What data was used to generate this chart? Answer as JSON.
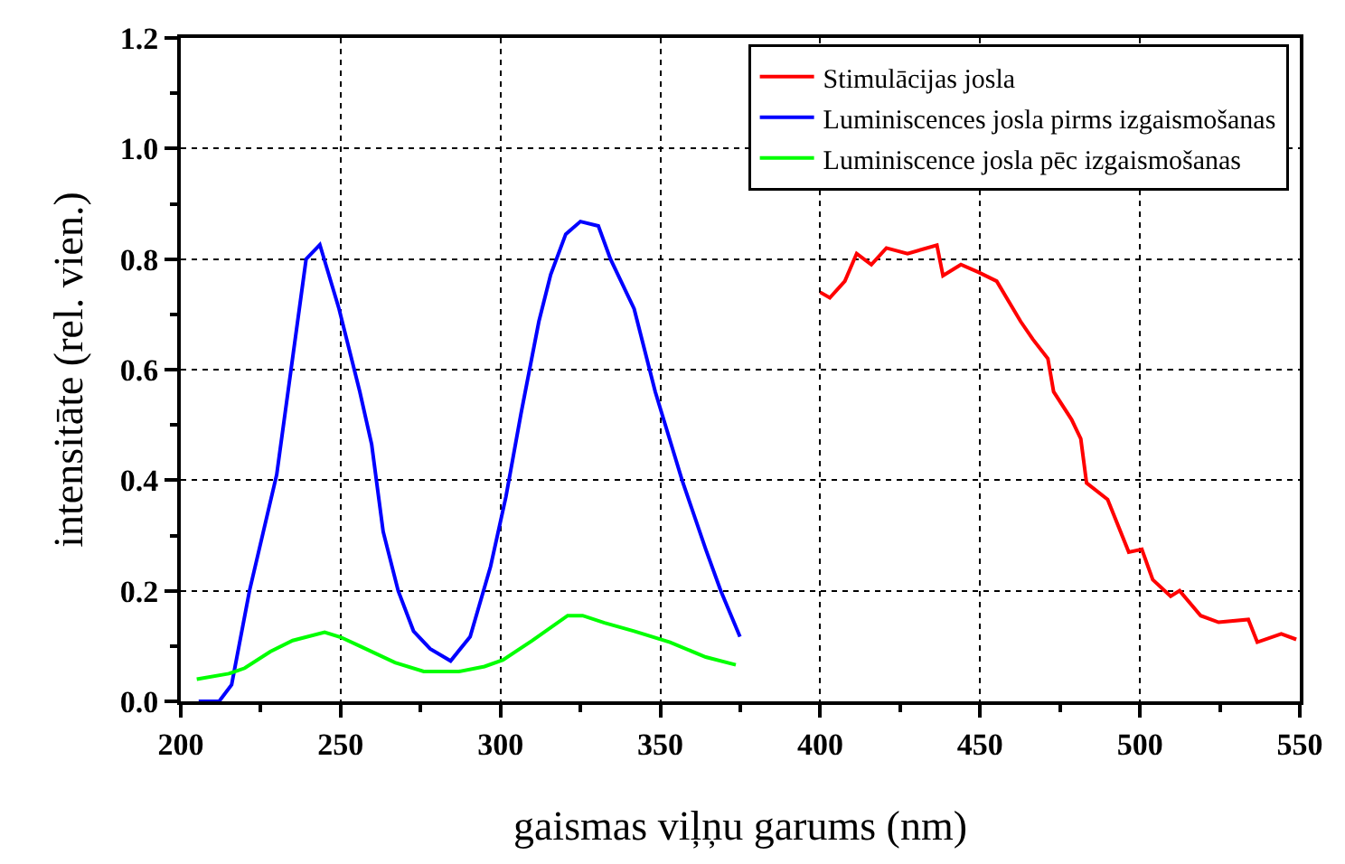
{
  "chart_data": {
    "type": "line",
    "xlabel": "gaismas viļņu garums (nm)",
    "ylabel": "intensitāte (rel. vien.)",
    "xlim": [
      200,
      550
    ],
    "xticks": [
      200,
      250,
      300,
      350,
      400,
      450,
      500,
      550
    ],
    "ylim": [
      0,
      1.2
    ],
    "yticks": [
      {
        "value": 0,
        "label": "0.0"
      },
      0.2,
      0.4,
      0.6,
      0.8,
      {
        "value": 1,
        "label": "1.0"
      },
      1.2
    ],
    "grid": true,
    "legend": "top right",
    "line_style": "solid",
    "marker": "none",
    "series": [
      {
        "name": "Stimulācijas josla",
        "color": "#ff0000",
        "x": [
          400,
          403,
          407.7,
          411.4,
          416,
          420.7,
          427.3,
          436.5,
          438.4,
          444,
          449.6,
          455.2,
          462.7,
          466.5,
          471.2,
          473,
          478.6,
          481.5,
          483.3,
          489.9,
          496.5,
          500.6,
          504,
          509.6,
          512.4,
          519,
          524.6,
          533.9,
          536.7,
          544.2,
          548.9
        ],
        "values": [
          0.74,
          0.73,
          0.76,
          0.81,
          0.79,
          0.82,
          0.81,
          0.825,
          0.77,
          0.79,
          0.776,
          0.76,
          0.687,
          0.655,
          0.62,
          0.56,
          0.51,
          0.475,
          0.395,
          0.365,
          0.27,
          0.275,
          0.22,
          0.19,
          0.2,
          0.155,
          0.143,
          0.148,
          0.107,
          0.122,
          0.112
        ]
      },
      {
        "name": "Luminiscences josla pirms izgaismošanas",
        "color": "#0000ff",
        "x": [
          205.6,
          212,
          215.9,
          221.5,
          230,
          239.2,
          243.5,
          249.5,
          256,
          259.7,
          263.3,
          268,
          272.8,
          278,
          284.4,
          290.5,
          296.9,
          301.7,
          306.4,
          312,
          315.7,
          320.4,
          325,
          330.6,
          334.4,
          341.8,
          348.4,
          356.8,
          364.2,
          368.9,
          374.9
        ],
        "values": [
          0,
          0,
          0.03,
          0.2,
          0.41,
          0.8,
          0.826,
          0.71,
          0.56,
          0.465,
          0.307,
          0.2,
          0.127,
          0.095,
          0.073,
          0.117,
          0.244,
          0.37,
          0.52,
          0.687,
          0.772,
          0.845,
          0.868,
          0.86,
          0.8,
          0.71,
          0.56,
          0.4,
          0.275,
          0.2,
          0.117
        ]
      },
      {
        "name": "Luminiscence josla pēc izgaismošanas",
        "color": "#00ff00",
        "x": [
          205,
          215,
          220,
          228,
          235,
          245,
          250,
          256,
          267,
          276,
          287,
          295,
          300.8,
          310,
          321,
          325.7,
          332.5,
          341.8,
          353,
          364.2,
          373.6
        ],
        "values": [
          0.04,
          0.05,
          0.06,
          0.09,
          0.11,
          0.125,
          0.116,
          0.1,
          0.07,
          0.054,
          0.054,
          0.063,
          0.075,
          0.11,
          0.155,
          0.155,
          0.142,
          0.127,
          0.107,
          0.08,
          0.066
        ]
      }
    ]
  }
}
